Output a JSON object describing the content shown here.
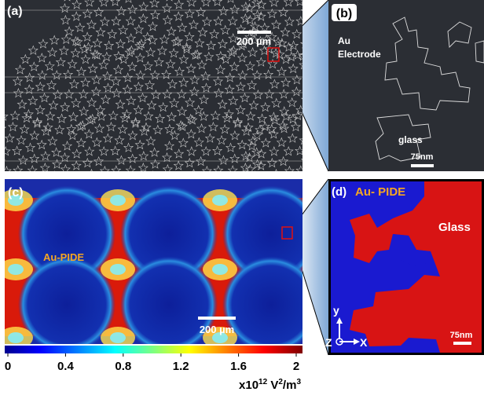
{
  "panels": [
    {
      "label": "(a)",
      "scale_bar": "200 µm"
    },
    {
      "label": "(b)",
      "texts": [
        "Au",
        "Electrode",
        "glass"
      ],
      "scale_bar": "75nm"
    },
    {
      "label": "(c)",
      "texts": [
        "Au-PIDE"
      ],
      "scale_bar": "200 µm"
    },
    {
      "label": "(d)",
      "texts": [
        "Au- PIDE",
        "Glass"
      ],
      "scale_bar": "75nm",
      "axes": [
        "y",
        "Z",
        "X"
      ]
    }
  ],
  "colorbar": {
    "ticks": [
      0,
      0.4,
      0.8,
      1.2,
      1.6,
      2
    ],
    "unit": {
      "prefix": "x10",
      "exponent": "12",
      "base": " V",
      "base_exp": "2",
      "per": "/m",
      "per_exp": "3"
    }
  }
}
